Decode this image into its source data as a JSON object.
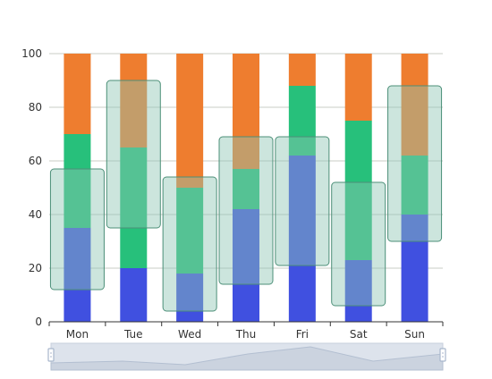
{
  "chart_data": {
    "type": "bar",
    "stacked": true,
    "categories": [
      "Mon",
      "Tue",
      "Wed",
      "Thu",
      "Fri",
      "Sat",
      "Sun"
    ],
    "ylim": [
      0,
      100
    ],
    "yticks": [
      0,
      20,
      40,
      60,
      80,
      100
    ],
    "grid": true,
    "series": [
      {
        "color": "#4050e0",
        "values": [
          35,
          20,
          18,
          42,
          62,
          23,
          40
        ]
      },
      {
        "color": "#27c07b",
        "values": [
          35,
          45,
          32,
          15,
          26,
          52,
          22
        ]
      },
      {
        "color": "#ee7d2f",
        "values": [
          30,
          35,
          50,
          43,
          12,
          25,
          38
        ]
      }
    ],
    "range_boxes": {
      "color": "#8fc6b4",
      "ranges": [
        [
          12,
          57
        ],
        [
          35,
          90
        ],
        [
          4,
          54
        ],
        [
          14,
          69
        ],
        [
          21,
          69
        ],
        [
          6,
          52
        ],
        [
          30,
          88
        ]
      ]
    },
    "data_zoom": {
      "visible": true,
      "background": "#dde3ec",
      "handle_color": "#a8b6cc"
    }
  }
}
